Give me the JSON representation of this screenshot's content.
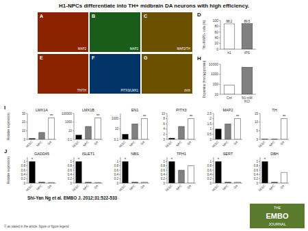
{
  "title": "H1-NPCs differentiate into TH+ midbrain DA neurons with high efficiency.",
  "subtitle": "Shi-Yan Ng et al. EMBO J. 2012;31:522-533",
  "annotations": [
    "© as stated in the article, figure or figure legend"
  ],
  "chart_data": [
    {
      "type": "image",
      "title": "A",
      "color": "#8B2200",
      "annotations": [
        "MAP2"
      ]
    },
    {
      "type": "image",
      "title": "B",
      "color": "#1a5c1a",
      "annotations": [
        "MAP2"
      ]
    },
    {
      "type": "image",
      "title": "C",
      "color": "#6B5000",
      "annotations": [
        "MAP2/TH"
      ]
    },
    {
      "type": "image",
      "title": "E",
      "color": "#8B2200",
      "annotations": [
        "TH/TH"
      ]
    },
    {
      "type": "image",
      "title": "F",
      "color": "#003366",
      "annotations": [
        "PITX3/LMX1"
      ]
    },
    {
      "type": "image",
      "title": "G",
      "color": "#6B5000",
      "annotations": [
        "th/th"
      ]
    },
    {
      "type": "bar",
      "annotations": [
        {
          "text": "D"
        }
      ],
      "ylabel": "TH+/MAP2+ cells (%)",
      "categories": [
        "h1",
        "iPS"
      ],
      "values": [
        88.2,
        89.5
      ],
      "colors": [
        "#ffffff",
        "#808080"
      ],
      "ylim": [
        0,
        100
      ],
      "yticks": [
        0,
        20,
        40,
        60,
        80,
        100
      ],
      "data_labels": true
    },
    {
      "type": "bar",
      "annotations": [
        {
          "text": "H"
        }
      ],
      "ylabel": "Dopamine (fmol/μg protein)",
      "categories": [
        "Ctrl",
        "50 mM\nKCl"
      ],
      "values": [
        80,
        5000
      ],
      "colors": [
        "#ffffff",
        "#808080"
      ],
      "log": "y",
      "ylim": [
        10,
        10000
      ],
      "yticks": [
        10,
        100,
        1000,
        10000
      ]
    },
    {
      "type": "bar",
      "title": "LMX1A",
      "annotations": [
        {
          "text": "I"
        },
        {
          "text": "**",
          "x": "DA"
        }
      ],
      "ylabel": "Relative expression",
      "categories": [
        "hESC",
        "NPC",
        "DA"
      ],
      "values": [
        1.0,
        8.0,
        25.0
      ],
      "colors": [
        "#000000",
        "#808080",
        "#ffffff"
      ],
      "ylim": [
        0,
        30
      ],
      "yticks": [
        0,
        10,
        20,
        30
      ]
    },
    {
      "type": "bar",
      "title": "LMX1B",
      "annotations": [
        {
          "text": "**",
          "x": "DA"
        }
      ],
      "categories": [
        "hESC",
        "NPC",
        "DA"
      ],
      "values": [
        1.0,
        100.0,
        10000.0
      ],
      "colors": [
        "#000000",
        "#808080",
        "#ffffff"
      ],
      "log": "y",
      "ylim": [
        0.1,
        100000
      ],
      "yticks": [
        0.1,
        10,
        1000,
        100000
      ]
    },
    {
      "type": "bar",
      "title": "EN1",
      "annotations": [
        {
          "text": "**",
          "x": "DA"
        }
      ],
      "categories": [
        "hESC",
        "NPC",
        "DA"
      ],
      "values": [
        1.0,
        100.0,
        1000.0
      ],
      "colors": [
        "#000000",
        "#808080",
        "#ffffff"
      ],
      "log": "y",
      "ylim": [
        0.1,
        10000
      ],
      "yticks": [
        0.1,
        10,
        1000
      ]
    },
    {
      "type": "bar",
      "title": "PITX3",
      "annotations": [
        {
          "text": "**",
          "x": "DA"
        }
      ],
      "categories": [
        "hESC",
        "NPC",
        "DA"
      ],
      "values": [
        0.5,
        5.0,
        8.0
      ],
      "colors": [
        "#000000",
        "#808080",
        "#ffffff"
      ],
      "ylim": [
        0,
        10
      ],
      "yticks": [
        0,
        2,
        4,
        6,
        8,
        10
      ]
    },
    {
      "type": "bar",
      "title": "MAP2",
      "annotations": [
        {
          "text": "**",
          "x": "DA"
        }
      ],
      "categories": [
        "hESC",
        "NPC",
        "DA"
      ],
      "values": [
        1.0,
        1.5,
        2.0
      ],
      "colors": [
        "#000000",
        "#808080",
        "#ffffff"
      ],
      "ylim": [
        0,
        2.5
      ],
      "yticks": [
        0,
        0.5,
        1,
        1.5,
        2,
        2.5
      ]
    },
    {
      "type": "bar",
      "title": "TH",
      "annotations": [
        {
          "text": "**",
          "x": "DA"
        }
      ],
      "categories": [
        "hESC",
        "NPC",
        "DA"
      ],
      "values": [
        0.2,
        0.3,
        12.0
      ],
      "colors": [
        "#000000",
        "#808080",
        "#ffffff"
      ],
      "ylim": [
        0,
        15
      ],
      "yticks": [
        0,
        5,
        10,
        15
      ]
    },
    {
      "type": "bar",
      "title": "GADD45",
      "annotations": [
        {
          "text": "J"
        },
        {
          "text": "*",
          "x": "hESC"
        }
      ],
      "ylabel": "Relative expression",
      "categories": [
        "hESC",
        "NPC",
        "DA"
      ],
      "values": [
        1.0,
        0.05,
        0.03
      ],
      "colors": [
        "#000000",
        "#808080",
        "#ffffff"
      ],
      "ylim": [
        0,
        1.2
      ],
      "yticks": [
        0,
        0.2,
        0.4,
        0.6,
        0.8,
        1.0
      ]
    },
    {
      "type": "bar",
      "title": "ISLET1",
      "annotations": [
        {
          "text": "*",
          "x": "hESC"
        }
      ],
      "categories": [
        "hESC",
        "NPC",
        "DA"
      ],
      "values": [
        1.0,
        0.04,
        0.03
      ],
      "colors": [
        "#000000",
        "#808080",
        "#ffffff"
      ],
      "ylim": [
        0,
        1.2
      ],
      "yticks": [
        0,
        0.2,
        0.4,
        0.6,
        0.8,
        1.0
      ]
    },
    {
      "type": "bar",
      "title": "NBS",
      "annotations": [
        {
          "text": "*",
          "x": "hESC"
        }
      ],
      "categories": [
        "hESC",
        "NPC",
        "DA"
      ],
      "values": [
        1.0,
        0.05,
        0.04
      ],
      "colors": [
        "#000000",
        "#808080",
        "#ffffff"
      ],
      "ylim": [
        0,
        1.2
      ],
      "yticks": [
        0,
        0.2,
        0.4,
        0.6,
        0.8,
        1.0
      ]
    },
    {
      "type": "bar",
      "title": "TPH1",
      "annotations": [
        {
          "text": "*",
          "x": "hESC"
        }
      ],
      "categories": [
        "hESC",
        "NPC",
        "DA"
      ],
      "values": [
        1.0,
        0.6,
        0.8
      ],
      "colors": [
        "#000000",
        "#808080",
        "#ffffff"
      ],
      "ylim": [
        0,
        1.2
      ],
      "yticks": [
        0,
        0.2,
        0.4,
        0.6,
        0.8,
        1.0
      ]
    },
    {
      "type": "bar",
      "title": "SERT",
      "annotations": [
        {
          "text": "*",
          "x": "hESC"
        }
      ],
      "categories": [
        "hESC",
        "NPC",
        "DA"
      ],
      "values": [
        1.0,
        0.05,
        0.04
      ],
      "colors": [
        "#000000",
        "#808080",
        "#ffffff"
      ],
      "ylim": [
        0,
        1.2
      ],
      "yticks": [
        0,
        0.2,
        0.4,
        0.6,
        0.8,
        1.0
      ]
    },
    {
      "type": "bar",
      "title": "DBH",
      "annotations": [
        {
          "text": "*",
          "x": "hESC"
        }
      ],
      "categories": [
        "hESC",
        "NPC",
        "DA"
      ],
      "values": [
        1.0,
        0.05,
        0.5
      ],
      "colors": [
        "#000000",
        "#808080",
        "#ffffff"
      ],
      "ylim": [
        0,
        1.2
      ],
      "yticks": [
        0,
        0.2,
        0.4,
        0.6,
        0.8,
        1.0
      ]
    },
    {
      "type": "logo",
      "color": "#5a7a2e",
      "annotations": [
        "THE",
        "EMBO",
        "JOURNAL"
      ]
    }
  ]
}
